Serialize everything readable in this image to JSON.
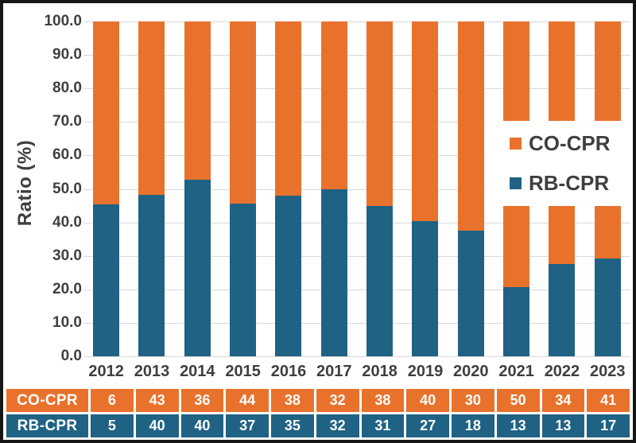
{
  "chart_data": {
    "type": "bar",
    "stacked": true,
    "normalized_to_percent": true,
    "ylabel": "Ratio (%)",
    "ylim": [
      0,
      100
    ],
    "ytick_step": 10,
    "yticks": [
      "100.0",
      "90.0",
      "80.0",
      "70.0",
      "60.0",
      "50.0",
      "40.0",
      "30.0",
      "20.0",
      "10.0",
      "0.0"
    ],
    "categories": [
      "2012",
      "2013",
      "2014",
      "2015",
      "2016",
      "2017",
      "2018",
      "2019",
      "2020",
      "2021",
      "2022",
      "2023"
    ],
    "series": [
      {
        "name": "CO-CPR",
        "color": "#E8722C",
        "counts": [
          6,
          43,
          36,
          44,
          38,
          32,
          38,
          40,
          30,
          50,
          34,
          41
        ]
      },
      {
        "name": "RB-CPR",
        "color": "#1F6284",
        "counts": [
          5,
          40,
          40,
          37,
          35,
          32,
          31,
          27,
          18,
          13,
          13,
          17
        ]
      }
    ],
    "rb_share_percent": [
      45.5,
      48.2,
      52.6,
      45.7,
      47.9,
      50.0,
      44.9,
      40.3,
      37.5,
      20.6,
      27.7,
      29.3
    ],
    "grid": "horizontal",
    "legend_position": "inside-right"
  },
  "legend": {
    "items": [
      {
        "label": "CO-CPR",
        "color": "#E8722C"
      },
      {
        "label": "RB-CPR",
        "color": "#1F6284"
      }
    ]
  },
  "data_table": {
    "rows": [
      {
        "label": "CO-CPR",
        "color": "#E8722C",
        "values": [
          "6",
          "43",
          "36",
          "44",
          "38",
          "32",
          "38",
          "40",
          "30",
          "50",
          "34",
          "41"
        ]
      },
      {
        "label": "RB-CPR",
        "color": "#1F6284",
        "values": [
          "5",
          "40",
          "40",
          "37",
          "35",
          "32",
          "31",
          "27",
          "18",
          "13",
          "13",
          "17"
        ]
      }
    ]
  },
  "colors": {
    "grid": "#D9D9D9",
    "axis_text": "#3F3F3F",
    "frame": "#161616",
    "background": "#FFFFFF"
  }
}
